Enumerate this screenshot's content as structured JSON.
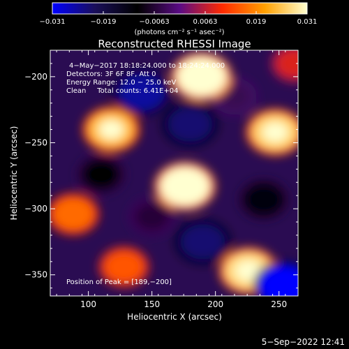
{
  "chart_data": {
    "type": "heatmap",
    "title": "Reconstructed RHESSI Image",
    "xlabel": "Heliocentric X (arcsec)",
    "ylabel": "Heliocentric Y (arcsec)",
    "xlim": [
      70,
      265
    ],
    "ylim": [
      -366,
      -180
    ],
    "xticks": [
      100,
      150,
      200,
      250
    ],
    "yticks": [
      -200,
      -250,
      -300,
      -350
    ],
    "colorbar": {
      "range": [
        -0.031,
        0.031
      ],
      "ticks": [
        "−0.031",
        "−0.019",
        "−0.0063",
        "0.0063",
        "0.019",
        "0.031"
      ],
      "label": "(photons cm⁻² s⁻¹ asec⁻²)",
      "colormap": [
        "#0000ff",
        "#1a0f5a",
        "#000000",
        "#5a0b84",
        "#ff2a00",
        "#ffa000",
        "#ffffd0"
      ]
    },
    "annotations": [
      "4−May−2017 18:18:24.000 to 18:24:24.000",
      "Detectors: 3F 6F 8F, Att 0",
      "Energy Range: 12.0 − 25.0 keV",
      "Clean     Total counts: 6.41E+04",
      "Position of Peak = [189,−200]"
    ],
    "blobs": [
      {
        "x": 189,
        "y": -200,
        "value": 0.031
      },
      {
        "x": 142,
        "y": -212,
        "value": -0.025
      },
      {
        "x": 180,
        "y": -236,
        "value": -0.022
      },
      {
        "x": 118,
        "y": -240,
        "value": 0.024
      },
      {
        "x": 247,
        "y": -242,
        "value": 0.026
      },
      {
        "x": 110,
        "y": -274,
        "value": -0.01
      },
      {
        "x": 176,
        "y": -283,
        "value": 0.031
      },
      {
        "x": 238,
        "y": -293,
        "value": -0.012
      },
      {
        "x": 88,
        "y": -304,
        "value": 0.016
      },
      {
        "x": 190,
        "y": -325,
        "value": -0.022
      },
      {
        "x": 128,
        "y": -344,
        "value": 0.014
      },
      {
        "x": 226,
        "y": -347,
        "value": 0.027
      },
      {
        "x": 254,
        "y": -358,
        "value": -0.031
      },
      {
        "x": 150,
        "y": -306,
        "value": -0.006
      },
      {
        "x": 215,
        "y": -215,
        "value": -0.004
      },
      {
        "x": 262,
        "y": -190,
        "value": 0.008
      }
    ],
    "grid": false
  },
  "footer": {
    "timestamp": "5−Sep−2022 12:41"
  }
}
